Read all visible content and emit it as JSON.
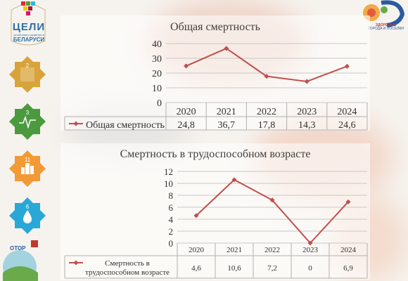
{
  "branding": {
    "goals_title": "ЦЕЛИ",
    "goals_subtitle": "устойчивого развития в",
    "goals_country": "БЕЛАРУСИ",
    "healthy_title": "ЗДОРОВЫЕ",
    "healthy_subtitle": "ГОРОДА И ПОСЕЛКИ",
    "otor_label": "ОТОР",
    "sdg_tiles": [
      {
        "number": "2",
        "color": "#d8a33a",
        "icon": "bowl-icon"
      },
      {
        "number": "3",
        "color": "#4c9a3f",
        "icon": "heartbeat-icon"
      },
      {
        "number": "11",
        "color": "#f29a36",
        "icon": "city-icon"
      },
      {
        "number": "6",
        "color": "#29a8d8",
        "icon": "water-drop-icon"
      }
    ]
  },
  "chart_data": [
    {
      "type": "line",
      "title": "Общая смертность",
      "categories": [
        "2020",
        "2021",
        "2022",
        "2023",
        "2024"
      ],
      "series": [
        {
          "name": "Общая смертность",
          "values": [
            24.8,
            36.7,
            17.8,
            14.3,
            24.6
          ]
        }
      ],
      "value_labels": [
        "24,8",
        "36,7",
        "17,8",
        "14,3",
        "24,6"
      ],
      "y_ticks": [
        "0",
        "10",
        "20",
        "30",
        "40"
      ],
      "ylim": [
        0,
        40
      ],
      "grid": true,
      "legend": "data-table",
      "color": "#c0504d"
    },
    {
      "type": "line",
      "title": "Смертность в трудоспособном возрасте",
      "categories": [
        "2020",
        "2021",
        "2022",
        "2023",
        "2024"
      ],
      "series": [
        {
          "name": "Смертность в трудоспособном возрасте",
          "values": [
            4.6,
            10.6,
            7.2,
            0,
            6.9
          ]
        }
      ],
      "series_label_lines": [
        "Смертность в",
        "трудоспособном возрасте"
      ],
      "value_labels": [
        "4,6",
        "10,6",
        "7,2",
        "0",
        "6,9"
      ],
      "y_ticks": [
        "0",
        "2",
        "4",
        "6",
        "8",
        "10",
        "12"
      ],
      "ylim": [
        0,
        12
      ],
      "grid": true,
      "legend": "data-table",
      "color": "#c0504d"
    }
  ]
}
